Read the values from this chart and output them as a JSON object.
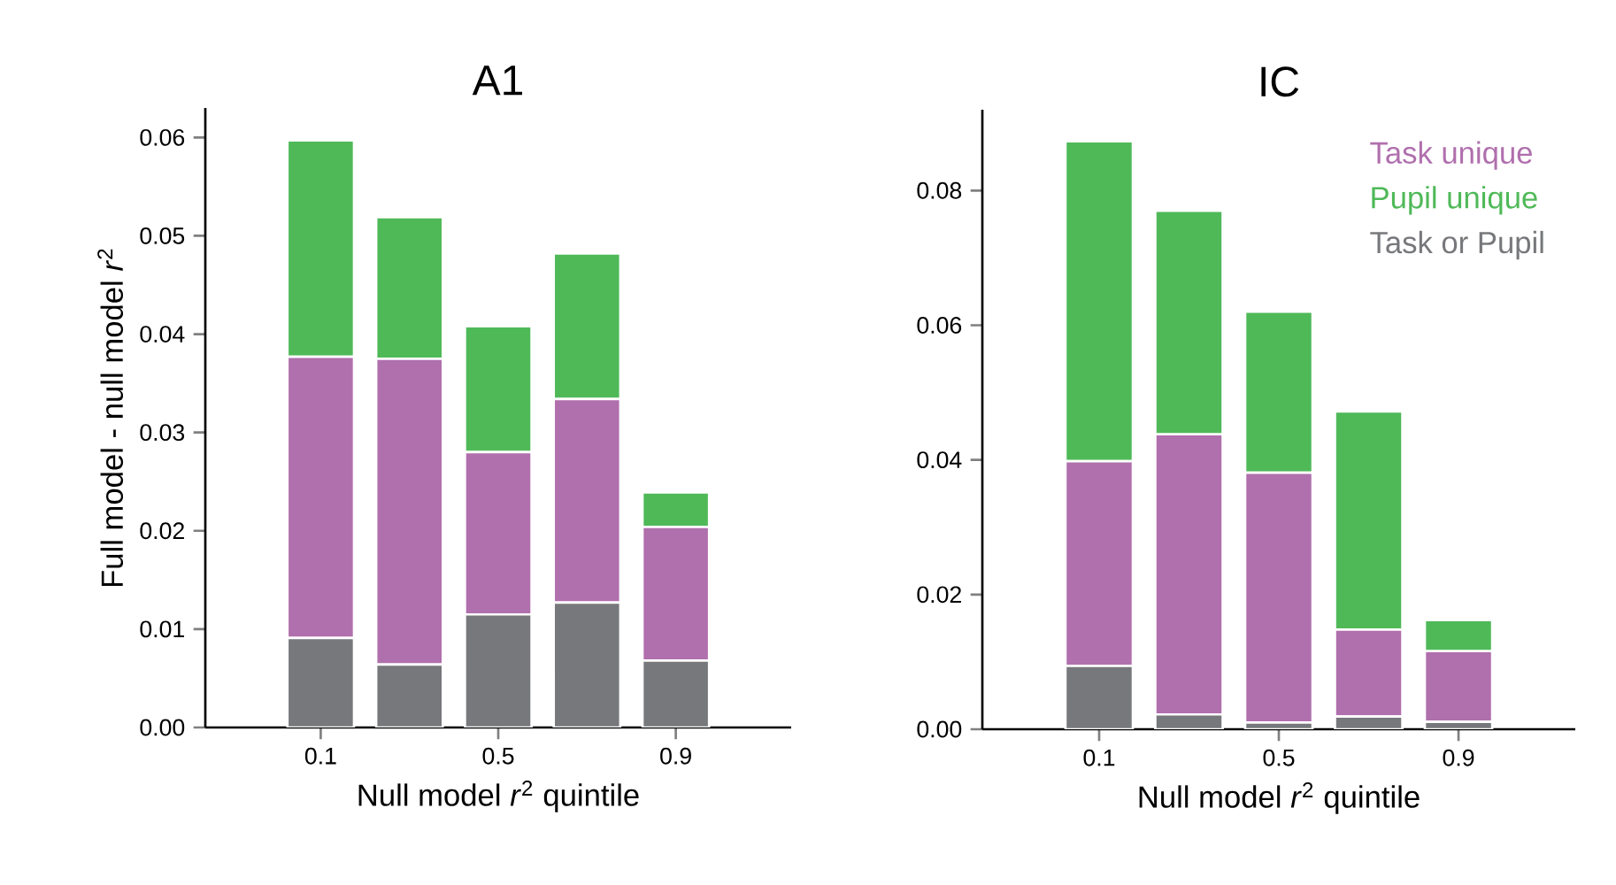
{
  "chart_data": [
    {
      "type": "bar",
      "stacked": true,
      "title": "A1",
      "xlabel": "Null model *r*$^{2}$ quintile",
      "ylabel": "Full model - null model *r*$^{2}$",
      "categories": [
        "0.1",
        null,
        "0.5",
        null,
        "0.9"
      ],
      "series": [
        {
          "color": "#77787b",
          "values": [
            0.0091,
            0.0064,
            0.0115,
            0.0127,
            0.0068
          ]
        },
        {
          "color": "#b06fad",
          "values": [
            0.0286,
            0.0311,
            0.0165,
            0.0207,
            0.0136
          ]
        },
        {
          "color": "#4fb958",
          "values": [
            0.022,
            0.0144,
            0.0128,
            0.0148,
            0.0035
          ]
        }
      ],
      "ylim": [
        0,
        0.063
      ],
      "yticks": [
        {
          "value": 0,
          "label": "0.00"
        },
        {
          "value": 0.01,
          "label": "0.01"
        },
        {
          "value": 0.02,
          "label": "0.02"
        },
        {
          "value": 0.03,
          "label": "0.03"
        },
        {
          "value": 0.04,
          "label": "0.04"
        },
        {
          "value": 0.05,
          "label": "0.05"
        },
        {
          "value": 0.06,
          "label": "0.06"
        }
      ]
    },
    {
      "type": "bar",
      "stacked": true,
      "title": "IC",
      "xlabel": "Null model *r*$^{2}$ quintile",
      "legend": "top right",
      "categories": [
        "0.1",
        null,
        "0.5",
        null,
        "0.9"
      ],
      "series": [
        {
          "name": "Task or Pupil",
          "color": "#77787b",
          "values": [
            0.0094,
            0.0022,
            0.001,
            0.0019,
            0.0011
          ]
        },
        {
          "name": "Task unique",
          "color": "#b06fad",
          "values": [
            0.0304,
            0.0416,
            0.0371,
            0.0129,
            0.0105
          ]
        },
        {
          "name": "Pupil unique",
          "color": "#4fb958",
          "values": [
            0.0475,
            0.0332,
            0.0239,
            0.0324,
            0.0046
          ]
        }
      ],
      "ylim": [
        0,
        0.092
      ],
      "yticks": [
        {
          "value": 0,
          "label": "0.00"
        },
        {
          "value": 0.02,
          "label": "0.02"
        },
        {
          "value": 0.04,
          "label": "0.04"
        },
        {
          "value": 0.06,
          "label": "0.06"
        },
        {
          "value": 0.08,
          "label": "0.08"
        }
      ]
    }
  ]
}
